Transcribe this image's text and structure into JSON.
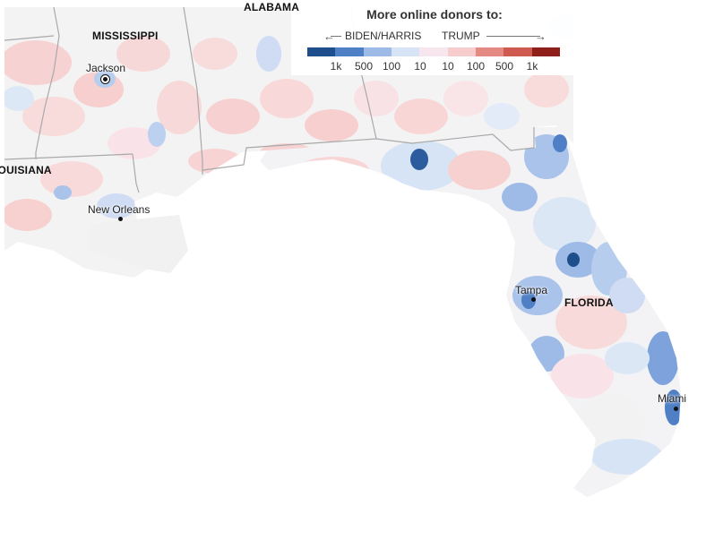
{
  "legend": {
    "title": "More online donors to:",
    "left_label": "BIDEN/HARRIS",
    "right_label": "TRUMP",
    "ticks": [
      "1k",
      "500",
      "100",
      "10",
      "10",
      "100",
      "500",
      "1k"
    ],
    "colors": [
      "#1f4e8c",
      "#4f7fc4",
      "#9ebae6",
      "#d6e4f5",
      "#f7e6ee",
      "#f7cccc",
      "#e58a82",
      "#cf5a4f",
      "#8e1f1b"
    ]
  },
  "states": {
    "alabama": "ALABAMA",
    "mississippi": "MISSISSIPPI",
    "louisiana": "LOUISIANA",
    "florida": "FLORIDA"
  },
  "cities": {
    "jackson": "Jackson",
    "new_orleans": "New Orleans",
    "tampa": "Tampa",
    "miami": "Miami"
  },
  "colors": {
    "land_neutral": "#f4f3f3",
    "unpopulated": "#f2f2f2",
    "border": "#a9a9a9"
  }
}
